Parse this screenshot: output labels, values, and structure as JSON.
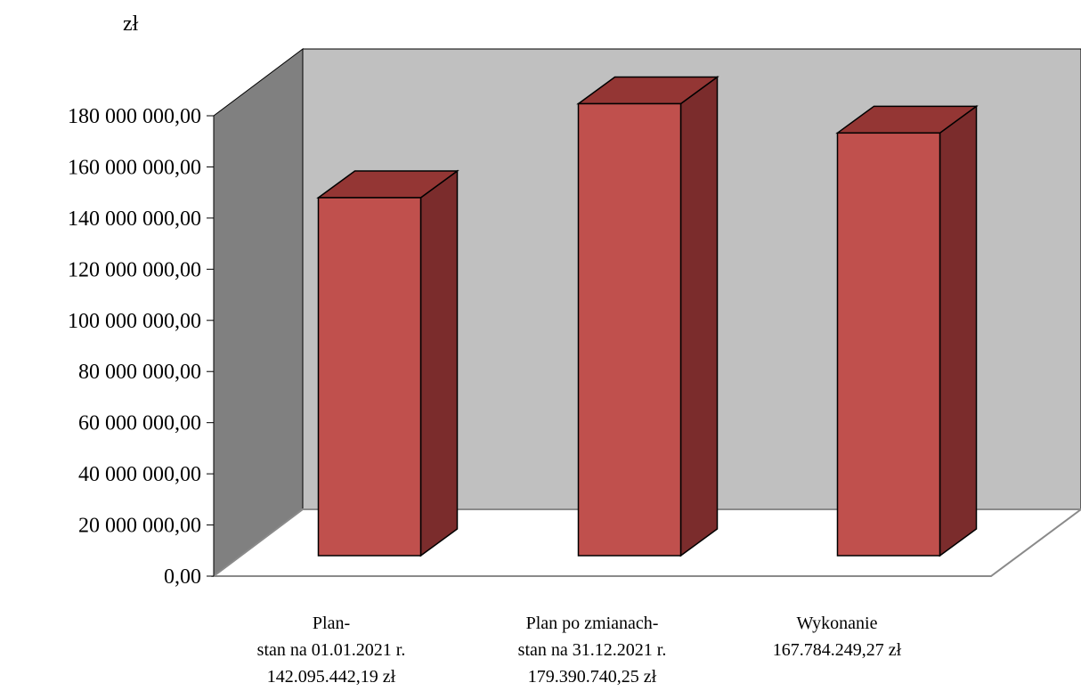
{
  "chart_data": {
    "type": "bar",
    "style": "3d-column",
    "unit_label": "zł",
    "ylim": [
      0,
      180000000
    ],
    "y_ticks": [
      0,
      20000000,
      40000000,
      60000000,
      80000000,
      100000000,
      120000000,
      140000000,
      160000000,
      180000000
    ],
    "y_tick_labels": [
      "0,00",
      "20 000 000,00",
      "40 000 000,00",
      "60 000 000,00",
      "80 000 000,00",
      "100 000 000,00",
      "120 000 000,00",
      "140 000 000,00",
      "160 000 000,00",
      "180 000 000,00"
    ],
    "categories": [
      [
        "Plan-",
        "stan na 01.01.2021 r.",
        "142.095.442,19 zł"
      ],
      [
        "Plan po zmianach-",
        "stan na 31.12.2021 r.",
        "179.390.740,25 zł"
      ],
      [
        "Wykonanie",
        "167.784.249,27 zł"
      ]
    ],
    "values": [
      142095442.19,
      179390740.25,
      167784249.27
    ],
    "grid": false,
    "legend": "none",
    "colors": {
      "bar_front": "#C0504D",
      "bar_top": "#943634",
      "bar_side": "#7B2C2C",
      "back_wall": "#C0C0C0",
      "side_wall": "#808080",
      "floor": "#FFFFFF"
    }
  }
}
